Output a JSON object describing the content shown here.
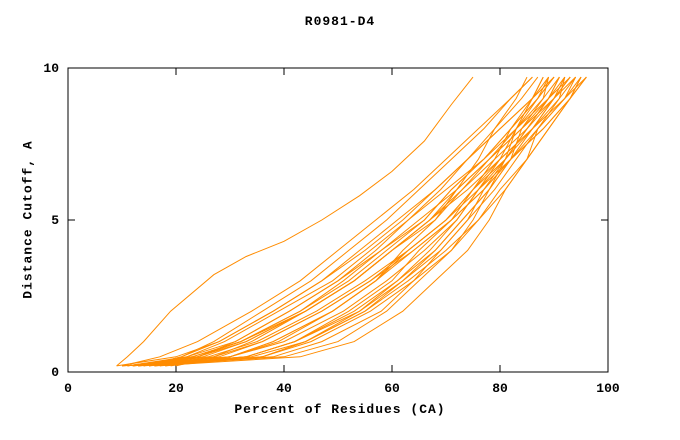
{
  "page": {
    "background": "#ffffff"
  },
  "chart_data": {
    "type": "line",
    "title": "R0981-D4",
    "xlabel": "Percent of Residues (CA)",
    "ylabel": "Distance Cutoff, A",
    "xlim": [
      0,
      100
    ],
    "ylim": [
      0,
      10
    ],
    "xticks": [
      0,
      20,
      40,
      60,
      80,
      100
    ],
    "yticks": [
      0,
      5,
      10
    ],
    "grid": false,
    "legend": "none",
    "line_color": "#ff8c00",
    "axis_color": "#000000",
    "series": [
      [
        [
          9,
          0.2
        ],
        [
          11,
          0.5
        ],
        [
          14,
          1
        ],
        [
          19,
          2
        ],
        [
          27,
          3.2
        ],
        [
          33,
          3.8
        ],
        [
          40,
          4.3
        ],
        [
          47,
          5
        ],
        [
          54,
          5.8
        ],
        [
          60,
          6.6
        ],
        [
          66,
          7.6
        ],
        [
          71,
          8.8
        ],
        [
          75,
          9.7
        ]
      ],
      [
        [
          10,
          0.2
        ],
        [
          38,
          0.5
        ],
        [
          47,
          1
        ],
        [
          58,
          2
        ],
        [
          64,
          3
        ],
        [
          69,
          4
        ],
        [
          74,
          5
        ],
        [
          77,
          6
        ],
        [
          81,
          7
        ],
        [
          83,
          8
        ],
        [
          86,
          9
        ],
        [
          88,
          9.7
        ]
      ],
      [
        [
          12,
          0.2
        ],
        [
          24,
          0.5
        ],
        [
          32,
          1
        ],
        [
          43,
          2
        ],
        [
          52,
          3
        ],
        [
          59,
          4
        ],
        [
          66,
          5
        ],
        [
          71,
          6
        ],
        [
          77,
          7
        ],
        [
          82,
          8
        ],
        [
          87,
          9
        ],
        [
          90,
          9.7
        ]
      ],
      [
        [
          13,
          0.2
        ],
        [
          33,
          0.5
        ],
        [
          42,
          1
        ],
        [
          53,
          2
        ],
        [
          61,
          3
        ],
        [
          68,
          4
        ],
        [
          73,
          5
        ],
        [
          78,
          6
        ],
        [
          82,
          7
        ],
        [
          86,
          8
        ],
        [
          90,
          9
        ],
        [
          92,
          9.7
        ]
      ],
      [
        [
          11,
          0.2
        ],
        [
          23,
          0.5
        ],
        [
          32,
          1
        ],
        [
          44,
          2
        ],
        [
          53,
          3
        ],
        [
          60,
          4
        ],
        [
          68,
          5
        ],
        [
          73,
          6
        ],
        [
          79,
          7
        ],
        [
          85,
          8
        ],
        [
          90,
          9
        ],
        [
          93,
          9.7
        ]
      ],
      [
        [
          14,
          0.2
        ],
        [
          34,
          0.5
        ],
        [
          44,
          1
        ],
        [
          55,
          2
        ],
        [
          63,
          3
        ],
        [
          70,
          4
        ],
        [
          76,
          5
        ],
        [
          80,
          6
        ],
        [
          85,
          7
        ],
        [
          89,
          8
        ],
        [
          93,
          9
        ],
        [
          95,
          9.7
        ]
      ],
      [
        [
          15,
          0.2
        ],
        [
          27,
          0.5
        ],
        [
          36,
          1
        ],
        [
          47,
          2
        ],
        [
          56,
          3
        ],
        [
          64,
          4
        ],
        [
          71,
          5
        ],
        [
          77,
          6
        ],
        [
          82,
          7
        ],
        [
          88,
          8
        ],
        [
          93,
          9
        ],
        [
          96,
          9.7
        ]
      ],
      [
        [
          12,
          0.2
        ],
        [
          30,
          0.5
        ],
        [
          39,
          1
        ],
        [
          49,
          2
        ],
        [
          57,
          3
        ],
        [
          62,
          4
        ],
        [
          68,
          5
        ],
        [
          72,
          6
        ],
        [
          76,
          7
        ],
        [
          79,
          8
        ],
        [
          83,
          9
        ],
        [
          85,
          9.7
        ]
      ],
      [
        [
          10,
          0.2
        ],
        [
          17,
          0.5
        ],
        [
          24,
          1
        ],
        [
          34,
          2
        ],
        [
          43,
          3
        ],
        [
          50,
          4
        ],
        [
          57,
          5
        ],
        [
          64,
          6
        ],
        [
          70,
          7
        ],
        [
          76,
          8
        ],
        [
          82,
          9
        ],
        [
          86,
          9.7
        ]
      ],
      [
        [
          16,
          0.2
        ],
        [
          28,
          0.5
        ],
        [
          36,
          1
        ],
        [
          47,
          2
        ],
        [
          56,
          3
        ],
        [
          63,
          4
        ],
        [
          70,
          5
        ],
        [
          75,
          6
        ],
        [
          81,
          7
        ],
        [
          86,
          8
        ],
        [
          91,
          9
        ],
        [
          94,
          9.7
        ]
      ],
      [
        [
          13,
          0.2
        ],
        [
          40,
          0.5
        ],
        [
          50,
          1
        ],
        [
          59,
          2
        ],
        [
          65,
          3
        ],
        [
          71,
          4
        ],
        [
          75,
          5
        ],
        [
          78,
          6
        ],
        [
          82,
          7
        ],
        [
          84,
          8
        ],
        [
          88,
          9
        ],
        [
          89,
          9.7
        ]
      ],
      [
        [
          17,
          0.2
        ],
        [
          36,
          0.5
        ],
        [
          44,
          1
        ],
        [
          55,
          2
        ],
        [
          62,
          3
        ],
        [
          68,
          4
        ],
        [
          73,
          5
        ],
        [
          78,
          6
        ],
        [
          81,
          7
        ],
        [
          85,
          8
        ],
        [
          89,
          9
        ],
        [
          91,
          9.7
        ]
      ],
      [
        [
          11,
          0.2
        ],
        [
          22,
          0.5
        ],
        [
          31,
          1
        ],
        [
          41,
          2
        ],
        [
          50,
          3
        ],
        [
          57,
          4
        ],
        [
          63,
          5
        ],
        [
          69,
          6
        ],
        [
          74,
          7
        ],
        [
          79,
          8
        ],
        [
          84,
          9
        ],
        [
          87,
          9.7
        ]
      ],
      [
        [
          15,
          0.2
        ],
        [
          22,
          0.5
        ],
        [
          29,
          1
        ],
        [
          39,
          2
        ],
        [
          49,
          3
        ],
        [
          56,
          4
        ],
        [
          63,
          5
        ],
        [
          70,
          6
        ],
        [
          77,
          7
        ],
        [
          83,
          8
        ],
        [
          89,
          9
        ],
        [
          93,
          9.7
        ]
      ],
      [
        [
          12,
          0.2
        ],
        [
          33,
          0.5
        ],
        [
          42,
          1
        ],
        [
          54,
          2
        ],
        [
          62,
          3
        ],
        [
          69,
          4
        ],
        [
          74,
          5
        ],
        [
          79,
          6
        ],
        [
          83,
          7
        ],
        [
          87,
          8
        ],
        [
          92,
          9
        ],
        [
          94,
          9.7
        ]
      ],
      [
        [
          18,
          0.2
        ],
        [
          30,
          0.5
        ],
        [
          38,
          1
        ],
        [
          49,
          2
        ],
        [
          57,
          3
        ],
        [
          64,
          4
        ],
        [
          71,
          5
        ],
        [
          77,
          6
        ],
        [
          82,
          7
        ],
        [
          87,
          8
        ],
        [
          92,
          9
        ],
        [
          95,
          9.7
        ]
      ],
      [
        [
          14,
          0.2
        ],
        [
          21,
          0.5
        ],
        [
          28,
          1
        ],
        [
          38,
          2
        ],
        [
          47,
          3
        ],
        [
          54,
          4
        ],
        [
          61,
          5
        ],
        [
          68,
          6
        ],
        [
          74,
          7
        ],
        [
          80,
          8
        ],
        [
          86,
          9
        ],
        [
          90,
          9.7
        ]
      ],
      [
        [
          16,
          0.2
        ],
        [
          43,
          0.5
        ],
        [
          53,
          1
        ],
        [
          62,
          2
        ],
        [
          68,
          3
        ],
        [
          74,
          4
        ],
        [
          78,
          5
        ],
        [
          81,
          6
        ],
        [
          85,
          7
        ],
        [
          87,
          8
        ],
        [
          91,
          9
        ],
        [
          92,
          9.7
        ]
      ],
      [
        [
          13,
          0.2
        ],
        [
          26,
          0.5
        ],
        [
          35,
          1
        ],
        [
          46,
          2
        ],
        [
          55,
          3
        ],
        [
          63,
          4
        ],
        [
          70,
          5
        ],
        [
          76,
          6
        ],
        [
          82,
          7
        ],
        [
          88,
          8
        ],
        [
          93,
          9
        ],
        [
          96,
          9.7
        ]
      ],
      [
        [
          10,
          0.2
        ],
        [
          30,
          0.5
        ],
        [
          40,
          1
        ],
        [
          51,
          2
        ],
        [
          59,
          3
        ],
        [
          66,
          4
        ],
        [
          72,
          5
        ],
        [
          76,
          6
        ],
        [
          81,
          7
        ],
        [
          85,
          8
        ],
        [
          89,
          9
        ],
        [
          91,
          9.7
        ]
      ],
      [
        [
          17,
          0.2
        ],
        [
          24,
          0.5
        ],
        [
          31,
          1
        ],
        [
          41,
          2
        ],
        [
          50,
          3
        ],
        [
          58,
          4
        ],
        [
          65,
          5
        ],
        [
          72,
          6
        ],
        [
          78,
          7
        ],
        [
          84,
          8
        ],
        [
          90,
          9
        ],
        [
          94,
          9.7
        ]
      ],
      [
        [
          12,
          0.2
        ],
        [
          24,
          0.5
        ],
        [
          33,
          1
        ],
        [
          44,
          2
        ],
        [
          53,
          3
        ],
        [
          60,
          4
        ],
        [
          67,
          5
        ],
        [
          73,
          6
        ],
        [
          78,
          7
        ],
        [
          84,
          8
        ],
        [
          89,
          9
        ],
        [
          92,
          9.7
        ]
      ],
      [
        [
          15,
          0.2
        ],
        [
          33,
          0.5
        ],
        [
          42,
          1
        ],
        [
          52,
          2
        ],
        [
          60,
          3
        ],
        [
          65,
          4
        ],
        [
          71,
          5
        ],
        [
          75,
          6
        ],
        [
          79,
          7
        ],
        [
          82,
          8
        ],
        [
          86,
          9
        ],
        [
          88,
          9.7
        ]
      ],
      [
        [
          19,
          0.2
        ],
        [
          30,
          0.5
        ],
        [
          38,
          1
        ],
        [
          49,
          2
        ],
        [
          57,
          3
        ],
        [
          63,
          4
        ],
        [
          70,
          5
        ],
        [
          75,
          6
        ],
        [
          80,
          7
        ],
        [
          86,
          8
        ],
        [
          90,
          9
        ],
        [
          93,
          9.7
        ]
      ],
      [
        [
          14,
          0.2
        ],
        [
          21,
          0.5
        ],
        [
          27,
          1
        ],
        [
          36,
          2
        ],
        [
          45,
          3
        ],
        [
          52,
          4
        ],
        [
          59,
          5
        ],
        [
          65,
          6
        ],
        [
          71,
          7
        ],
        [
          77,
          8
        ],
        [
          82,
          9
        ],
        [
          86,
          9.7
        ]
      ],
      [
        [
          11,
          0.2
        ],
        [
          23,
          0.5
        ],
        [
          32,
          1
        ],
        [
          43,
          2
        ],
        [
          51,
          3
        ],
        [
          58,
          4
        ],
        [
          66,
          5
        ],
        [
          71,
          6
        ],
        [
          77,
          7
        ],
        [
          82,
          8
        ],
        [
          87,
          9
        ],
        [
          90,
          9.7
        ]
      ],
      [
        [
          16,
          0.2
        ],
        [
          36,
          0.5
        ],
        [
          45,
          1
        ],
        [
          56,
          2
        ],
        [
          64,
          3
        ],
        [
          71,
          4
        ],
        [
          76,
          5
        ],
        [
          81,
          6
        ],
        [
          85,
          7
        ],
        [
          89,
          8
        ],
        [
          93,
          9
        ],
        [
          95,
          9.7
        ]
      ],
      [
        [
          20,
          0.2
        ],
        [
          27,
          0.5
        ],
        [
          34,
          1
        ],
        [
          44,
          2
        ],
        [
          53,
          3
        ],
        [
          60,
          4
        ],
        [
          67,
          5
        ],
        [
          74,
          6
        ],
        [
          80,
          7
        ],
        [
          86,
          8
        ],
        [
          92,
          9
        ],
        [
          96,
          9.7
        ]
      ],
      [
        [
          13,
          0.2
        ],
        [
          25,
          0.5
        ],
        [
          33,
          1
        ],
        [
          44,
          2
        ],
        [
          53,
          3
        ],
        [
          60,
          4
        ],
        [
          67,
          5
        ],
        [
          72,
          6
        ],
        [
          78,
          7
        ],
        [
          83,
          8
        ],
        [
          88,
          9
        ],
        [
          91,
          9.7
        ]
      ],
      [
        [
          18,
          0.2
        ],
        [
          36,
          0.5
        ],
        [
          44,
          1
        ],
        [
          54,
          2
        ],
        [
          61,
          3
        ],
        [
          67,
          4
        ],
        [
          72,
          5
        ],
        [
          76,
          6
        ],
        [
          80,
          7
        ],
        [
          83,
          8
        ],
        [
          87,
          9
        ],
        [
          89,
          9.7
        ]
      ],
      [
        [
          9,
          0.2
        ],
        [
          20,
          0.5
        ],
        [
          28,
          1
        ],
        [
          38,
          2
        ],
        [
          47,
          3
        ],
        [
          55,
          4
        ],
        [
          62,
          5
        ],
        [
          68,
          6
        ],
        [
          74,
          7
        ],
        [
          80,
          8
        ],
        [
          86,
          9
        ],
        [
          89,
          9.7
        ]
      ]
    ]
  }
}
